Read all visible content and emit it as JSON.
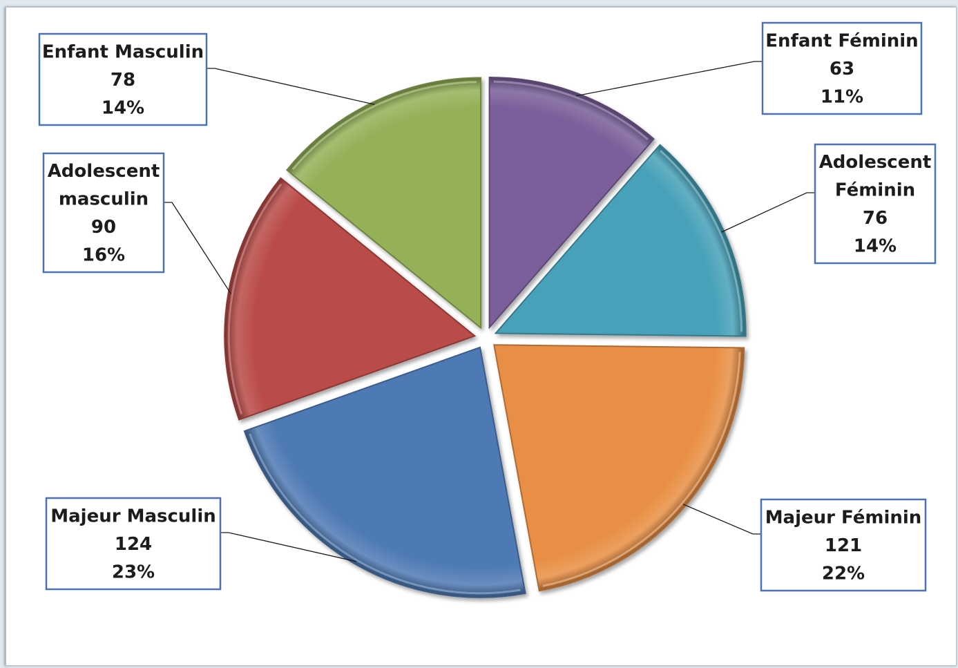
{
  "chart_data": {
    "type": "pie",
    "title": "",
    "slices": [
      {
        "key": "enfant_feminin",
        "lines": [
          "Enfant Féminin"
        ],
        "value": "63",
        "percent": "11%",
        "color": "#7a5f9a"
      },
      {
        "key": "adolescent_feminin",
        "lines": [
          "Adolescent",
          "Féminin"
        ],
        "value": "76",
        "percent": "14%",
        "color": "#47a1b8"
      },
      {
        "key": "majeur_feminin",
        "lines": [
          "Majeur Féminin"
        ],
        "value": "121",
        "percent": "22%",
        "color": "#e88f44"
      },
      {
        "key": "majeur_masculin",
        "lines": [
          "Majeur Masculin"
        ],
        "value": "124",
        "percent": "23%",
        "color": "#4e7ab4"
      },
      {
        "key": "adolescent_masculin",
        "lines": [
          "Adolescent",
          "masculin"
        ],
        "value": "90",
        "percent": "16%",
        "color": "#b94b48"
      },
      {
        "key": "enfant_masculin",
        "lines": [
          "Enfant Masculin"
        ],
        "value": "78",
        "percent": "14%",
        "color": "#94b158"
      }
    ],
    "start_angle_deg": 0,
    "direction": "clockwise",
    "exploded": true
  }
}
